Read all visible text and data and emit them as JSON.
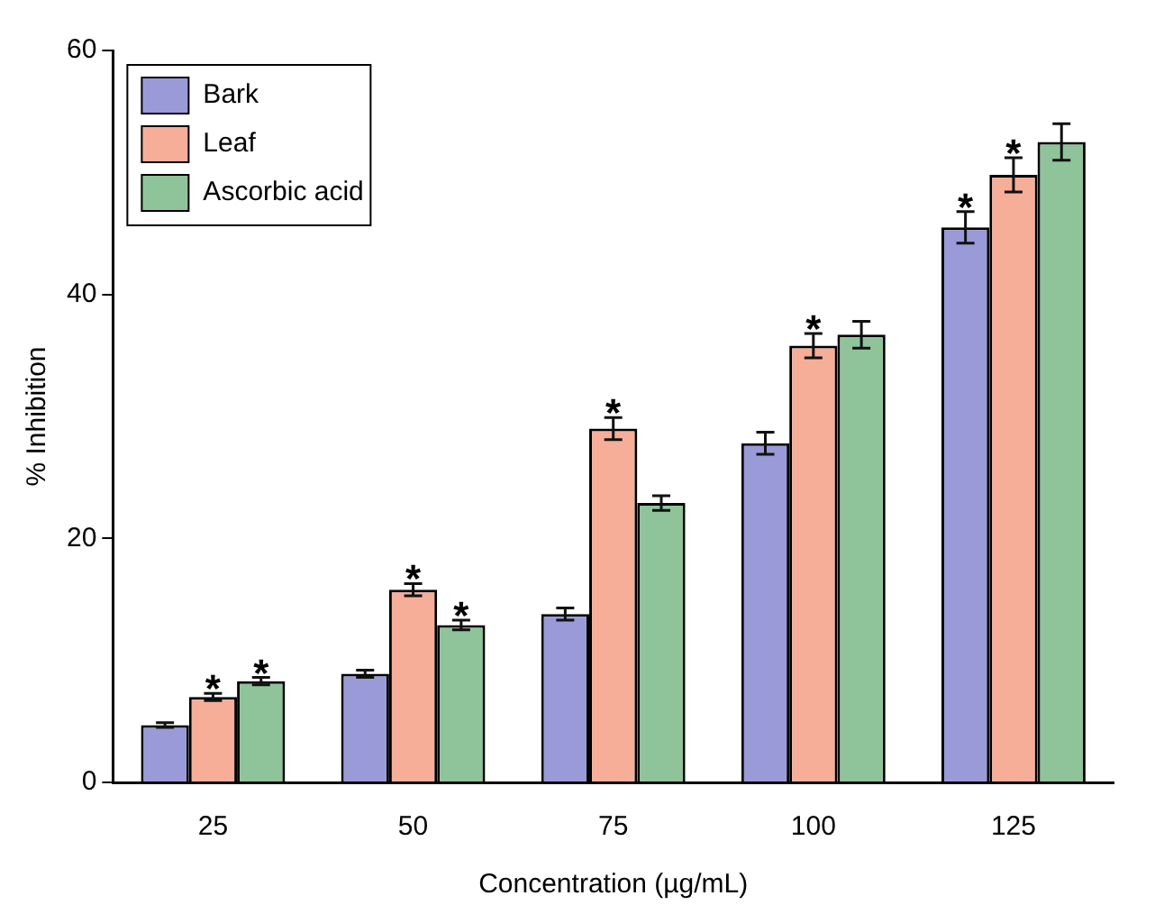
{
  "chart_data": {
    "type": "bar",
    "xlabel": "Concentration (µg/mL)",
    "ylabel": "% Inhibition",
    "categories": [
      "25",
      "50",
      "75",
      "100",
      "125"
    ],
    "series": [
      {
        "name": "Bark",
        "color": "#9a9ad8",
        "values": [
          4.7,
          8.9,
          13.8,
          27.8,
          45.5
        ],
        "errors": [
          0.2,
          0.3,
          0.5,
          0.9,
          1.3
        ],
        "value_labels": [
          null,
          null,
          null,
          null,
          "*"
        ]
      },
      {
        "name": "Leaf",
        "color": "#f6ae98",
        "values": [
          7.0,
          15.8,
          29.0,
          35.8,
          49.8
        ],
        "errors": [
          0.3,
          0.5,
          0.9,
          1.0,
          1.4
        ],
        "value_labels": [
          "*",
          "*",
          "*",
          "*",
          "*"
        ]
      },
      {
        "name": "Ascorbic acid",
        "color": "#8fc49a",
        "values": [
          8.3,
          12.9,
          22.9,
          36.7,
          52.5
        ],
        "errors": [
          0.3,
          0.4,
          0.6,
          1.1,
          1.5
        ],
        "value_labels": [
          "*",
          "*",
          null,
          null,
          null
        ]
      }
    ],
    "ylim": [
      0,
      60
    ],
    "yticks": [
      0,
      20,
      40,
      60
    ],
    "grid": false,
    "legend": "top left"
  }
}
